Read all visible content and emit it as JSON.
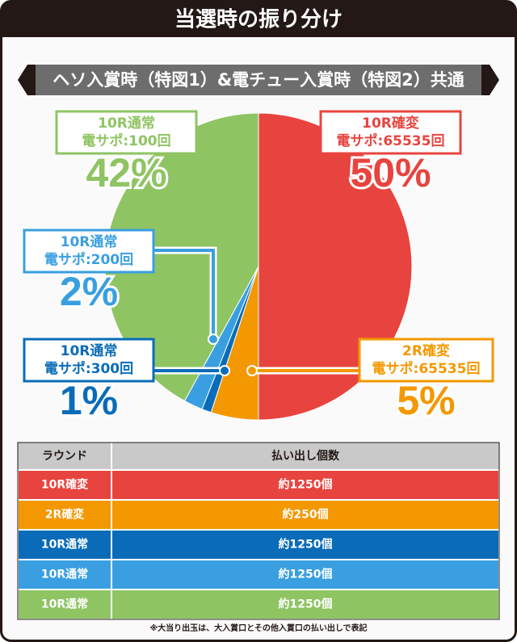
{
  "header": {
    "title": "当選時の振り分け"
  },
  "chart_data": {
    "type": "pie",
    "title": "ヘソ入賞時（特図1）&電チュー入賞時（特図2）共通",
    "categories": [
      "10R確変",
      "2R確変",
      "10R通常",
      "10R通常",
      "10R通常"
    ],
    "support": [
      "電サポ:65535回",
      "電サポ:65535回",
      "電サポ:300回",
      "電サポ:200回",
      "電サポ:100回"
    ],
    "values": [
      50,
      5,
      1,
      2,
      42
    ],
    "value_labels": [
      "50%",
      "5%",
      "1%",
      "2%",
      "42%"
    ],
    "colors": [
      "#e8443f",
      "#f39800",
      "#0a6cb8",
      "#3a9fe0",
      "#8fc463"
    ]
  },
  "table": {
    "header": [
      "ラウンド",
      "払い出し個数"
    ],
    "rows": [
      [
        "10R確変",
        "約1250個"
      ],
      [
        "2R確変",
        "約250個"
      ],
      [
        "10R通常",
        "約1250個"
      ],
      [
        "10R通常",
        "約1250個"
      ],
      [
        "10R通常",
        "約1250個"
      ]
    ],
    "row_colors": [
      "#e8443f",
      "#f39800",
      "#0a6cb8",
      "#3a9fe0",
      "#8fc463"
    ]
  },
  "footnote": "※大当り出玉は、大入賞口とその他入賞口の払い出しで表記"
}
